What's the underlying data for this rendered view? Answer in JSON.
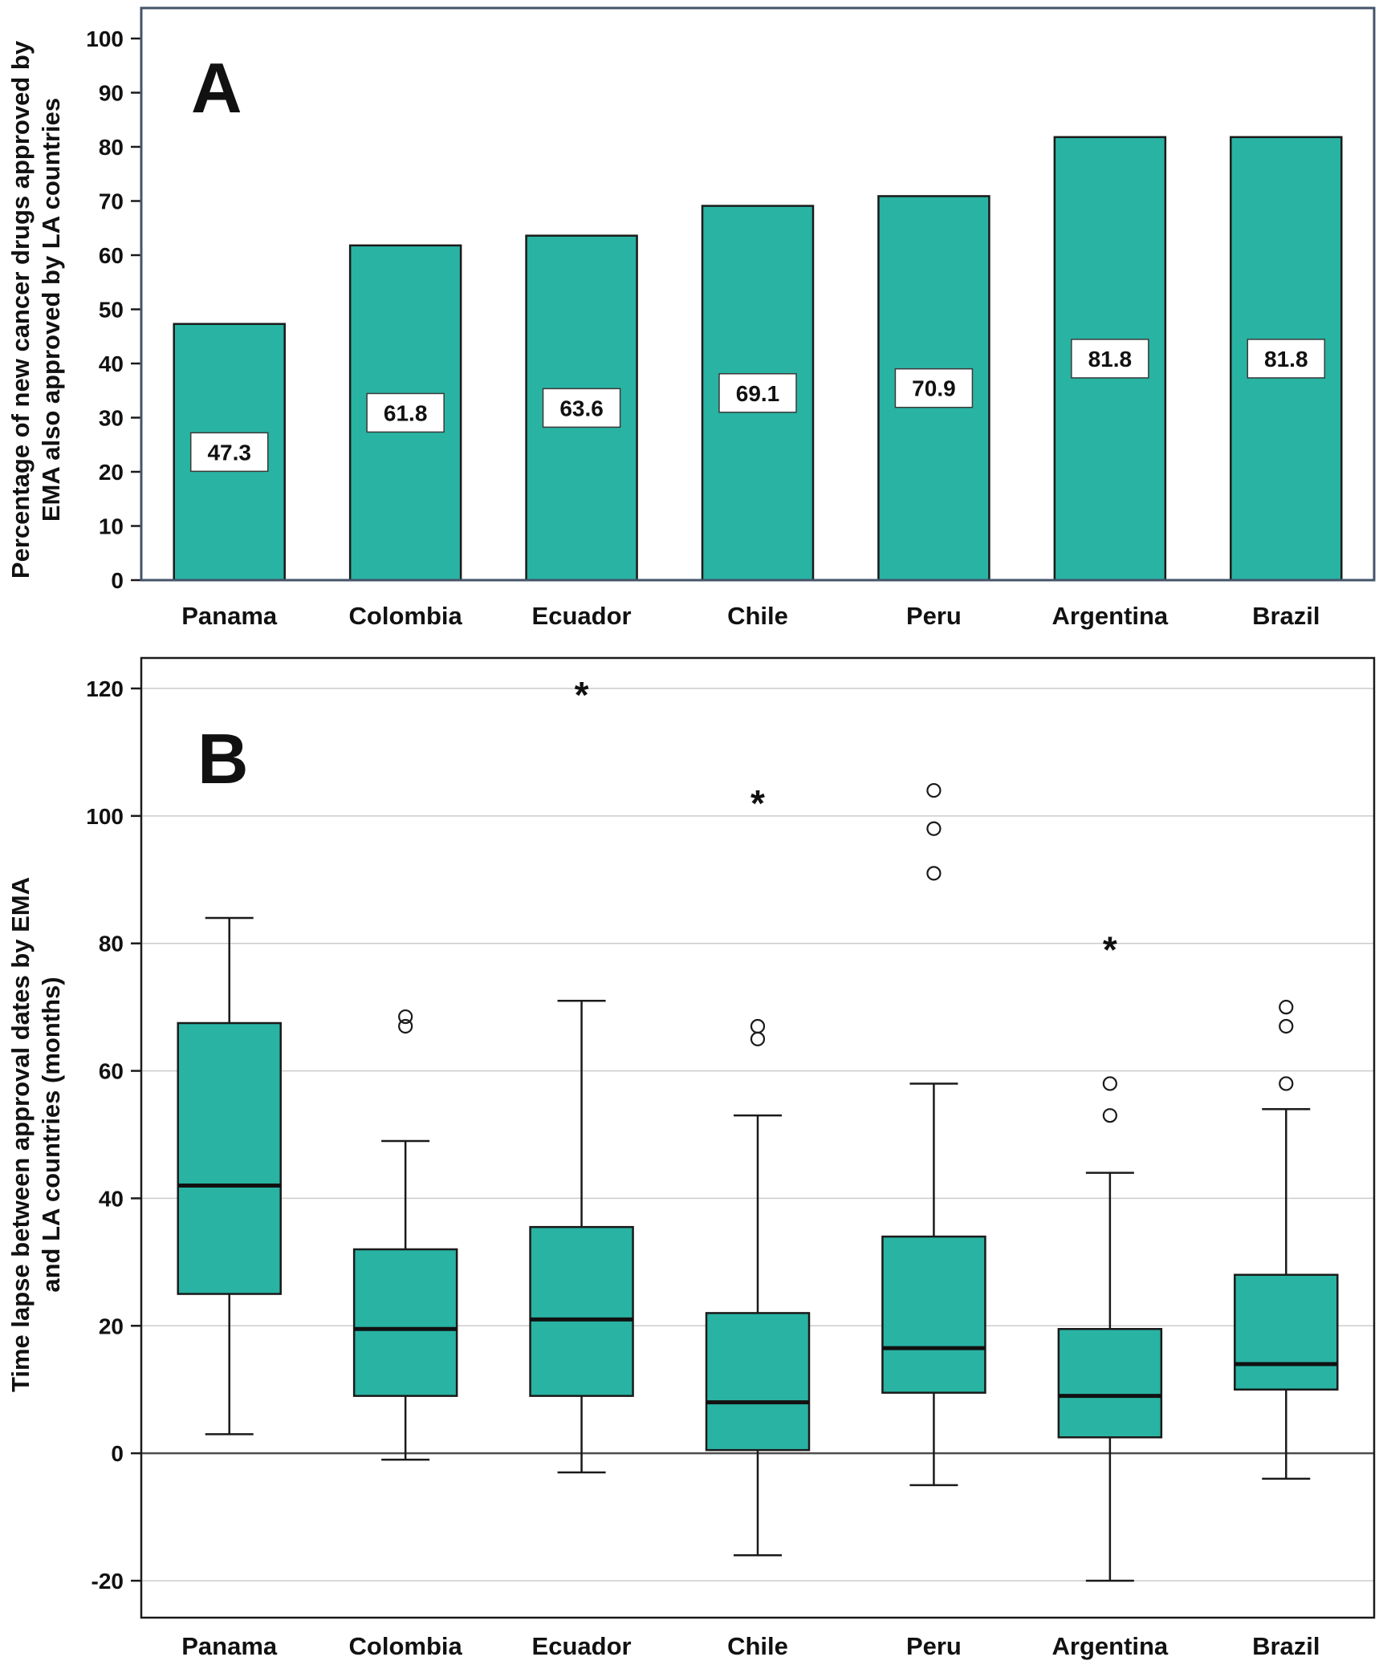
{
  "chart_data": [
    {
      "type": "bar",
      "panel_label": "A",
      "ylabel_lines": [
        "Percentage of new cancer drugs approved by",
        "EMA also approved by LA countries"
      ],
      "categories": [
        "Panama",
        "Colombia",
        "Ecuador",
        "Chile",
        "Peru",
        "Argentina",
        "Brazil"
      ],
      "values": [
        47.3,
        61.8,
        63.6,
        69.1,
        70.9,
        81.8,
        81.8
      ],
      "value_labels": [
        "47.3",
        "61.8",
        "63.6",
        "69.1",
        "70.9",
        "81.8",
        "81.8"
      ],
      "ylim": [
        0,
        100
      ],
      "yticks": [
        0,
        10,
        20,
        30,
        40,
        50,
        60,
        70,
        80,
        90,
        100
      ],
      "grid": false,
      "legend": "none",
      "bar_color": "#29B3A3",
      "bar_border_color": "#1a1a1a",
      "frame_color": "#44546A",
      "label_box_fill": "#ffffff",
      "label_box_border": "#3a3a3a"
    },
    {
      "type": "box",
      "panel_label": "B",
      "ylabel_lines": [
        "Time lapse between approval dates by EMA",
        "and LA countries (months)"
      ],
      "categories": [
        "Panama",
        "Colombia",
        "Ecuador",
        "Chile",
        "Peru",
        "Argentina",
        "Brazil"
      ],
      "ylim": [
        -20,
        120
      ],
      "yticks": [
        -20,
        0,
        20,
        40,
        60,
        80,
        100,
        120
      ],
      "grid": true,
      "grid_color": "#cccccc",
      "zero_line": true,
      "zero_line_color": "#4d4d4d",
      "legend": "none",
      "box_color": "#29B3A3",
      "box_border_color": "#1a1a1a",
      "frame_color": "#1a1a1a",
      "boxes": [
        {
          "category": "Panama",
          "whisker_low": 3,
          "q1": 25,
          "median": 42,
          "q3": 67.5,
          "whisker_high": 84,
          "outliers": [],
          "extremes": []
        },
        {
          "category": "Colombia",
          "whisker_low": -1,
          "q1": 9,
          "median": 19.5,
          "q3": 32,
          "whisker_high": 49,
          "outliers": [
            67,
            68.5
          ],
          "extremes": []
        },
        {
          "category": "Ecuador",
          "whisker_low": -3,
          "q1": 9,
          "median": 21,
          "q3": 35.5,
          "whisker_high": 71,
          "outliers": [],
          "extremes": [
            119
          ]
        },
        {
          "category": "Chile",
          "whisker_low": -16,
          "q1": 0.5,
          "median": 8,
          "q3": 22,
          "whisker_high": 53,
          "outliers": [
            65,
            67
          ],
          "extremes": [
            102
          ]
        },
        {
          "category": "Peru",
          "whisker_low": -5,
          "q1": 9.5,
          "median": 16.5,
          "q3": 34,
          "whisker_high": 58,
          "outliers": [
            91,
            98,
            104
          ],
          "extremes": []
        },
        {
          "category": "Argentina",
          "whisker_low": -20,
          "q1": 2.5,
          "median": 9,
          "q3": 19.5,
          "whisker_high": 44,
          "outliers": [
            53,
            58
          ],
          "extremes": [
            79
          ]
        },
        {
          "category": "Brazil",
          "whisker_low": -4,
          "q1": 10,
          "median": 14,
          "q3": 28,
          "whisker_high": 54,
          "outliers": [
            58,
            67,
            70
          ],
          "extremes": []
        }
      ]
    }
  ]
}
